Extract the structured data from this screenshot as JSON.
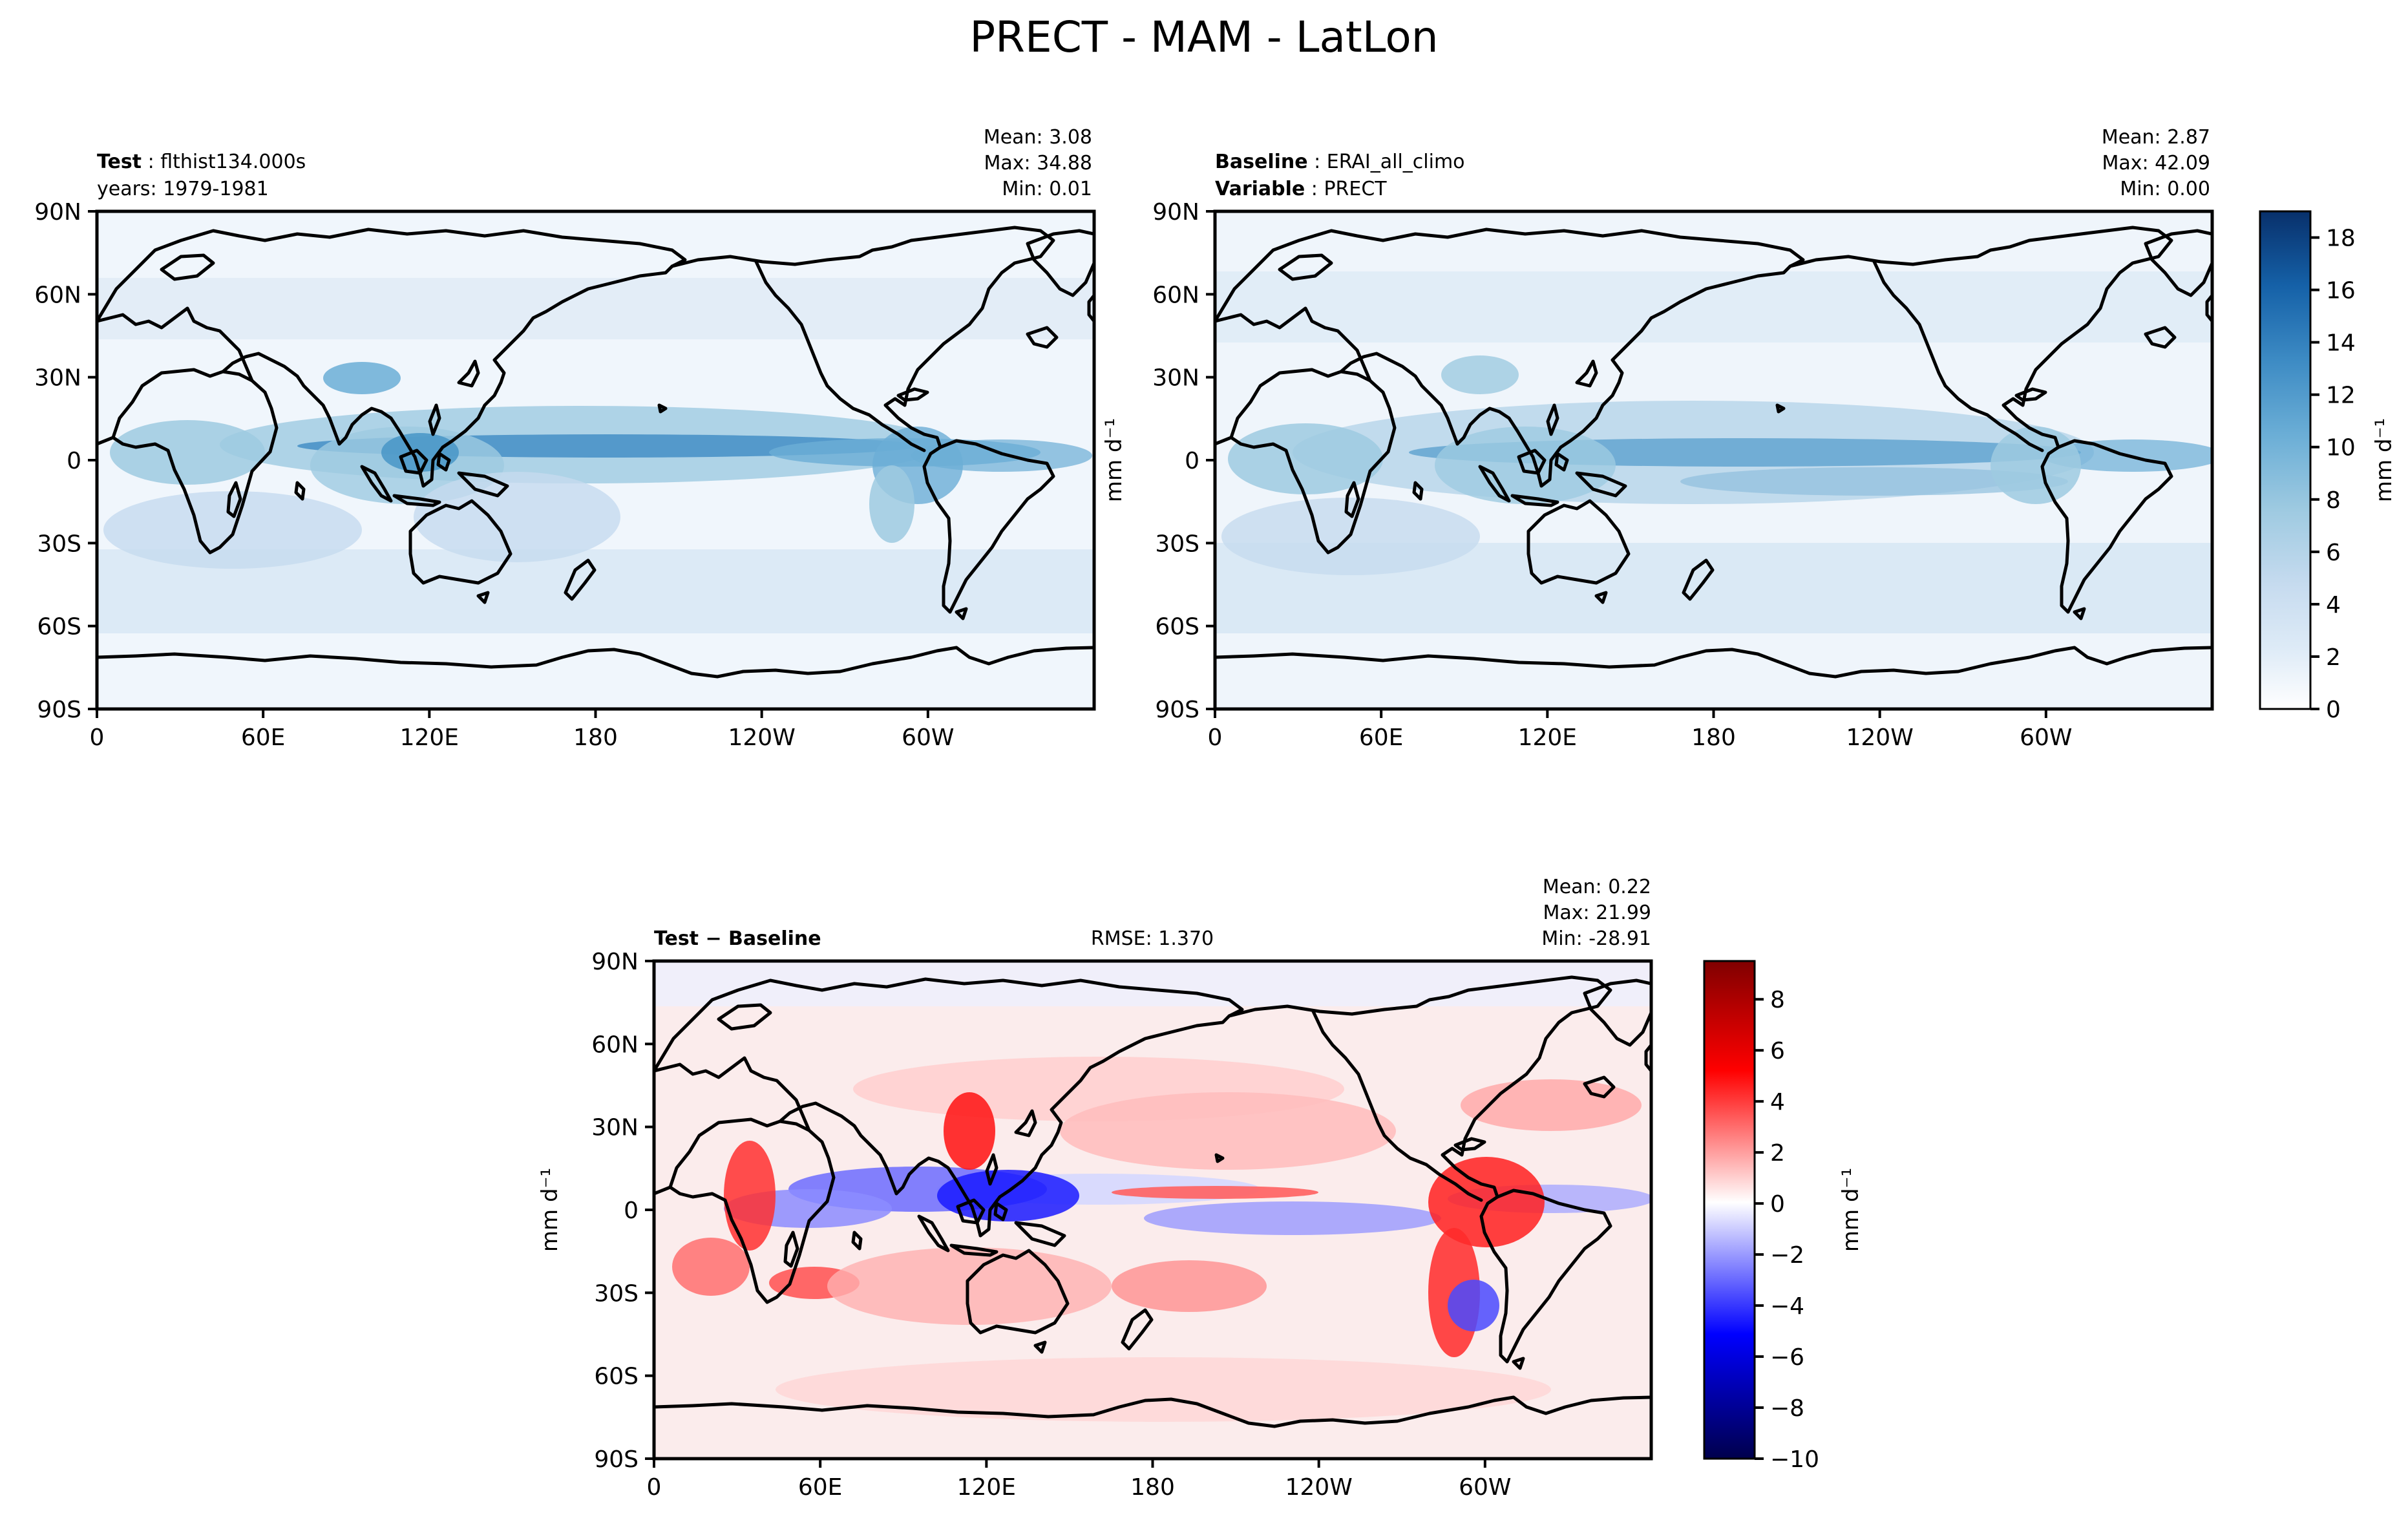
{
  "figure": {
    "title": "PRECT - MAM - LatLon"
  },
  "chart_data": [
    {
      "id": "test",
      "type": "heatmap",
      "map": "lat-lon precipitation",
      "header_left": [
        {
          "bold": "Test",
          "sep": " : ",
          "text": "flthist134.000s"
        },
        {
          "bold": "",
          "sep": "",
          "text": "years: 1979-1981"
        }
      ],
      "stats": [
        "Mean:  3.08",
        "Max: 34.88",
        "Min:  0.01"
      ],
      "xticks": [
        "0",
        "60E",
        "120E",
        "180",
        "120W",
        "60W"
      ],
      "yticks": [
        "90N",
        "60N",
        "30N",
        "0",
        "30S",
        "60S",
        "90S"
      ],
      "xlim": [
        0,
        360
      ],
      "ylim": [
        -90,
        90
      ],
      "colormap": "Blues",
      "clim": [
        0,
        19
      ]
    },
    {
      "id": "baseline",
      "type": "heatmap",
      "map": "lat-lon precipitation",
      "header_left": [
        {
          "bold": "Baseline",
          "sep": " : ",
          "text": "ERAI_all_climo"
        },
        {
          "bold": "Variable",
          "sep": " : ",
          "text": "PRECT"
        }
      ],
      "stats": [
        "Mean:  2.87",
        "Max: 42.09",
        "Min:  0.00"
      ],
      "xticks": [
        "0",
        "60E",
        "120E",
        "180",
        "120W",
        "60W"
      ],
      "yticks": [
        "90N",
        "60N",
        "30N",
        "0",
        "30S",
        "60S",
        "90S"
      ],
      "xlim": [
        0,
        360
      ],
      "ylim": [
        -90,
        90
      ],
      "ylabel": "mm d⁻¹",
      "colormap": "Blues",
      "clim": [
        0,
        19
      ]
    },
    {
      "id": "diff",
      "type": "heatmap",
      "map": "lat-lon precipitation difference",
      "header_left": [
        {
          "bold": "Test − Baseline",
          "sep": "",
          "text": ""
        }
      ],
      "rmse": "RMSE: 1.370",
      "stats": [
        "Mean:  0.22",
        "Max: 21.99",
        "Min: -28.91"
      ],
      "xticks": [
        "0",
        "60E",
        "120E",
        "180",
        "120W",
        "60W"
      ],
      "yticks": [
        "90N",
        "60N",
        "30N",
        "0",
        "30S",
        "60S",
        "90S"
      ],
      "xlim": [
        0,
        360
      ],
      "ylim": [
        -90,
        90
      ],
      "ylabel": "mm d⁻¹",
      "colormap": "seismic",
      "clim": [
        -10,
        9.5
      ]
    }
  ],
  "colorbars": [
    {
      "id": "cb-main",
      "label": "mm d⁻¹",
      "ticks": [
        "0",
        "2",
        "4",
        "6",
        "8",
        "10",
        "12",
        "14",
        "16",
        "18"
      ],
      "tick_values": [
        0,
        2,
        4,
        6,
        8,
        10,
        12,
        14,
        16,
        18
      ],
      "range": [
        0,
        19
      ],
      "colors": [
        "#f7fbff",
        "#deebf7",
        "#c6dbef",
        "#9ecae1",
        "#6baed6",
        "#4292c6",
        "#2171b5",
        "#08519c",
        "#08306b"
      ]
    },
    {
      "id": "cb-diff",
      "label": "mm d⁻¹",
      "ticks": [
        "−10",
        "−8",
        "−6",
        "−4",
        "−2",
        "0",
        "2",
        "4",
        "6",
        "8"
      ],
      "tick_values": [
        -10,
        -8,
        -6,
        -4,
        -2,
        0,
        2,
        4,
        6,
        8
      ],
      "range": [
        -10,
        9.5
      ],
      "colors": [
        "#00004c",
        "#0000ff",
        "#ffffff",
        "#ff0000",
        "#800000"
      ]
    }
  ]
}
